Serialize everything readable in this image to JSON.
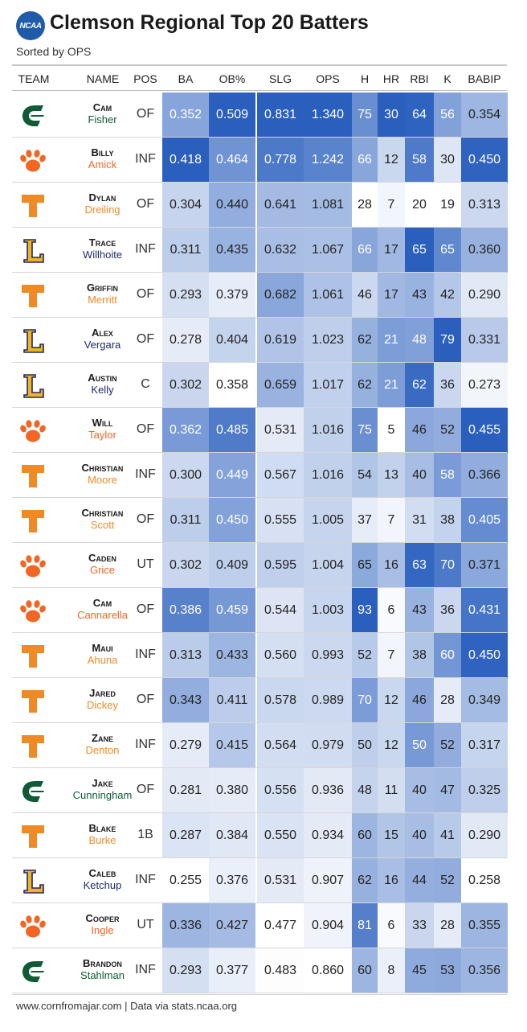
{
  "header": {
    "logo_text": "NCAA",
    "title": "Clemson Regional Top 20 Batters",
    "subtitle": "Sorted by OPS"
  },
  "columns": [
    "TEAM",
    "NAME",
    "POS",
    "BA",
    "OB%",
    "SLG",
    "OPS",
    "H",
    "HR",
    "RBI",
    "K",
    "BABIP"
  ],
  "team_logos": {
    "charlotte": {
      "icon": "charlotte-c-icon",
      "color": "#0e5b35",
      "name_color": "#0e5b35"
    },
    "clemson": {
      "icon": "clemson-paw-icon",
      "color": "#f26522",
      "name_color": "#f26522"
    },
    "tennessee": {
      "icon": "tennessee-t-icon",
      "color": "#f08a24",
      "name_color": "#f08a24"
    },
    "lipscomb": {
      "icon": "lipscomb-l-icon",
      "color": "#f3b31b",
      "name_color": "#1d2b6b"
    }
  },
  "scale_colors": {
    "low": "#ffffff",
    "high": "#2a5fbe"
  },
  "footer": {
    "text": "www.cornfromajar.com | Data via stats.ncaa.org"
  },
  "chart_data": {
    "type": "table",
    "title": "Clemson Regional Top 20 Batters",
    "subtitle": "Sorted by OPS",
    "rows": [
      {
        "team": "charlotte",
        "first": "Cam",
        "last": "Fisher",
        "pos": "OF",
        "ba": "0.352",
        "obp": "0.509",
        "slg": "0.831",
        "ops": "1.340",
        "h": "75",
        "hr": "30",
        "rbi": "64",
        "k": "56",
        "babip": "0.354"
      },
      {
        "team": "clemson",
        "first": "Billy",
        "last": "Amick",
        "pos": "INF",
        "ba": "0.418",
        "obp": "0.464",
        "slg": "0.778",
        "ops": "1.242",
        "h": "66",
        "hr": "12",
        "rbi": "58",
        "k": "30",
        "babip": "0.450"
      },
      {
        "team": "tennessee",
        "first": "Dylan",
        "last": "Dreiling",
        "pos": "OF",
        "ba": "0.304",
        "obp": "0.440",
        "slg": "0.641",
        "ops": "1.081",
        "h": "28",
        "hr": "7",
        "rbi": "20",
        "k": "19",
        "babip": "0.313"
      },
      {
        "team": "lipscomb",
        "first": "Trace",
        "last": "Willhoite",
        "pos": "INF",
        "ba": "0.311",
        "obp": "0.435",
        "slg": "0.632",
        "ops": "1.067",
        "h": "66",
        "hr": "17",
        "rbi": "65",
        "k": "65",
        "babip": "0.360"
      },
      {
        "team": "tennessee",
        "first": "Griffin",
        "last": "Merritt",
        "pos": "OF",
        "ba": "0.293",
        "obp": "0.379",
        "slg": "0.682",
        "ops": "1.061",
        "h": "46",
        "hr": "17",
        "rbi": "43",
        "k": "42",
        "babip": "0.290"
      },
      {
        "team": "lipscomb",
        "first": "Alex",
        "last": "Vergara",
        "pos": "OF",
        "ba": "0.278",
        "obp": "0.404",
        "slg": "0.619",
        "ops": "1.023",
        "h": "62",
        "hr": "21",
        "rbi": "48",
        "k": "79",
        "babip": "0.331"
      },
      {
        "team": "lipscomb",
        "first": "Austin",
        "last": "Kelly",
        "pos": "C",
        "ba": "0.302",
        "obp": "0.358",
        "slg": "0.659",
        "ops": "1.017",
        "h": "62",
        "hr": "21",
        "rbi": "62",
        "k": "36",
        "babip": "0.273"
      },
      {
        "team": "clemson",
        "first": "Will",
        "last": "Taylor",
        "pos": "OF",
        "ba": "0.362",
        "obp": "0.485",
        "slg": "0.531",
        "ops": "1.016",
        "h": "75",
        "hr": "5",
        "rbi": "46",
        "k": "52",
        "babip": "0.455"
      },
      {
        "team": "tennessee",
        "first": "Christian",
        "last": "Moore",
        "pos": "INF",
        "ba": "0.300",
        "obp": "0.449",
        "slg": "0.567",
        "ops": "1.016",
        "h": "54",
        "hr": "13",
        "rbi": "40",
        "k": "58",
        "babip": "0.366"
      },
      {
        "team": "tennessee",
        "first": "Christian",
        "last": "Scott",
        "pos": "OF",
        "ba": "0.311",
        "obp": "0.450",
        "slg": "0.555",
        "ops": "1.005",
        "h": "37",
        "hr": "7",
        "rbi": "31",
        "k": "38",
        "babip": "0.405"
      },
      {
        "team": "clemson",
        "first": "Caden",
        "last": "Grice",
        "pos": "UT",
        "ba": "0.302",
        "obp": "0.409",
        "slg": "0.595",
        "ops": "1.004",
        "h": "65",
        "hr": "16",
        "rbi": "63",
        "k": "70",
        "babip": "0.371"
      },
      {
        "team": "clemson",
        "first": "Cam",
        "last": "Cannarella",
        "pos": "OF",
        "ba": "0.386",
        "obp": "0.459",
        "slg": "0.544",
        "ops": "1.003",
        "h": "93",
        "hr": "6",
        "rbi": "43",
        "k": "36",
        "babip": "0.431"
      },
      {
        "team": "tennessee",
        "first": "Maui",
        "last": "Ahuna",
        "pos": "INF",
        "ba": "0.313",
        "obp": "0.433",
        "slg": "0.560",
        "ops": "0.993",
        "h": "52",
        "hr": "7",
        "rbi": "38",
        "k": "60",
        "babip": "0.450"
      },
      {
        "team": "tennessee",
        "first": "Jared",
        "last": "Dickey",
        "pos": "OF",
        "ba": "0.343",
        "obp": "0.411",
        "slg": "0.578",
        "ops": "0.989",
        "h": "70",
        "hr": "12",
        "rbi": "46",
        "k": "28",
        "babip": "0.349"
      },
      {
        "team": "tennessee",
        "first": "Zane",
        "last": "Denton",
        "pos": "INF",
        "ba": "0.279",
        "obp": "0.415",
        "slg": "0.564",
        "ops": "0.979",
        "h": "50",
        "hr": "12",
        "rbi": "50",
        "k": "52",
        "babip": "0.317"
      },
      {
        "team": "charlotte",
        "first": "Jake",
        "last": "Cunningham",
        "pos": "OF",
        "ba": "0.281",
        "obp": "0.380",
        "slg": "0.556",
        "ops": "0.936",
        "h": "48",
        "hr": "11",
        "rbi": "40",
        "k": "47",
        "babip": "0.325"
      },
      {
        "team": "tennessee",
        "first": "Blake",
        "last": "Burke",
        "pos": "1B",
        "ba": "0.287",
        "obp": "0.384",
        "slg": "0.550",
        "ops": "0.934",
        "h": "60",
        "hr": "15",
        "rbi": "40",
        "k": "41",
        "babip": "0.290"
      },
      {
        "team": "lipscomb",
        "first": "Caleb",
        "last": "Ketchup",
        "pos": "INF",
        "ba": "0.255",
        "obp": "0.376",
        "slg": "0.531",
        "ops": "0.907",
        "h": "62",
        "hr": "16",
        "rbi": "44",
        "k": "52",
        "babip": "0.258"
      },
      {
        "team": "clemson",
        "first": "Cooper",
        "last": "Ingle",
        "pos": "UT",
        "ba": "0.336",
        "obp": "0.427",
        "slg": "0.477",
        "ops": "0.904",
        "h": "81",
        "hr": "6",
        "rbi": "33",
        "k": "28",
        "babip": "0.355"
      },
      {
        "team": "charlotte",
        "first": "Brandon",
        "last": "Stahlman",
        "pos": "INF",
        "ba": "0.293",
        "obp": "0.377",
        "slg": "0.483",
        "ops": "0.860",
        "h": "60",
        "hr": "8",
        "rbi": "45",
        "k": "53",
        "babip": "0.356"
      }
    ]
  }
}
